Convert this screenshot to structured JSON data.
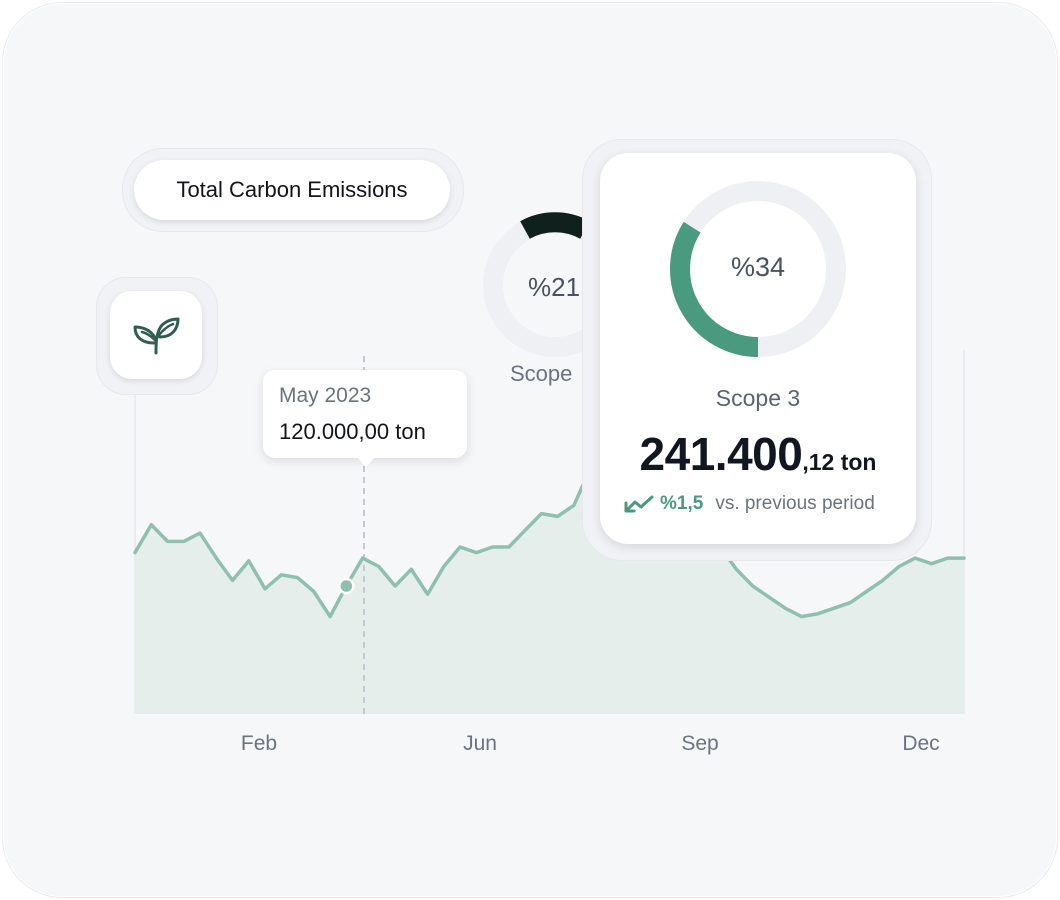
{
  "header": {
    "title": "Total Carbon Emissions"
  },
  "icons": {
    "leaf": "sprout-icon",
    "trend": "trend-arrow-icon"
  },
  "colors": {
    "accent_green": "#4a9a80",
    "line_green": "#8fbfae",
    "area_fill": "#e6eeeb",
    "dark_arc": "#10201c"
  },
  "tooltip": {
    "date": "May 2023",
    "value": "120.000,00 ton"
  },
  "scope_back": {
    "percent": "%21",
    "label": "Scope"
  },
  "scope_card": {
    "percent": "%34",
    "percent_value": 34,
    "title": "Scope 3",
    "value_int": "241.400",
    "value_dec": ",12 ton",
    "trend_value": "%1,5",
    "trend_text": "vs. previous period"
  },
  "chart_data": {
    "type": "area",
    "x_labels": [
      "Feb",
      "Jun",
      "Sep",
      "Dec"
    ],
    "y": [
      118,
      128,
      122,
      122,
      125,
      116,
      108,
      115,
      105,
      110,
      109,
      104,
      95,
      106,
      116,
      113,
      106,
      112,
      103,
      113,
      120,
      118,
      120,
      120,
      126,
      132,
      131,
      135,
      148,
      151,
      155,
      160,
      158,
      150,
      140,
      130,
      120,
      112,
      106,
      102,
      98,
      95,
      96,
      98,
      100,
      104,
      108,
      113,
      116,
      114,
      116,
      116
    ],
    "highlight_index": 13,
    "ylim": [
      60,
      180
    ],
    "grid": false
  }
}
